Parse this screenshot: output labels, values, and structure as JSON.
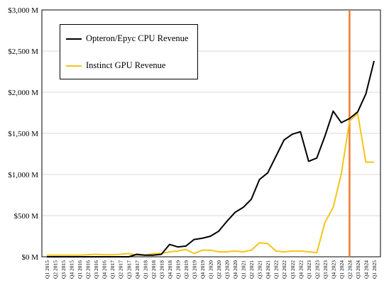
{
  "chart_data": {
    "type": "line",
    "categories": [
      "Q1 2015",
      "Q2 2015",
      "Q3 2015",
      "Q4 2015",
      "Q1 2016",
      "Q2 2016",
      "Q3 2016",
      "Q4 2016",
      "Q1 2017",
      "Q2 2017",
      "Q3 2017",
      "Q4 2017",
      "Q1 2018",
      "Q2 2018",
      "Q3 2018",
      "Q4 2018",
      "Q1 2019",
      "Q2 2019",
      "Q3 2019",
      "Q4 2019",
      "Q1 2020",
      "Q2 2020",
      "Q3 2020",
      "Q4 2020",
      "Q1 2021",
      "Q2 2021",
      "Q3 2021",
      "Q4 2021",
      "Q1 2022",
      "Q2 2022",
      "Q3 2022",
      "Q4 2022",
      "Q1 2023",
      "Q2 2023",
      "Q3 2023",
      "Q4 2023",
      "Q1 2024",
      "Q2 2024",
      "Q3 2024",
      "Q4 2024",
      "Q1 2025"
    ],
    "series": [
      {
        "name": "Opteron/Epyc CPU Revenue",
        "color": "#000000",
        "values": [
          0,
          0,
          0,
          0,
          0,
          0,
          0,
          0,
          0,
          0,
          0,
          30,
          20,
          20,
          30,
          150,
          120,
          130,
          210,
          225,
          250,
          310,
          430,
          540,
          600,
          700,
          940,
          1020,
          1220,
          1420,
          1490,
          1520,
          1160,
          1200,
          1470,
          1770,
          1630,
          1680,
          1760,
          1980,
          2380
        ]
      },
      {
        "name": "Instinct GPU Revenue",
        "color": "#f5c518",
        "values": [
          20,
          20,
          20,
          20,
          20,
          25,
          30,
          25,
          25,
          30,
          40,
          20,
          20,
          40,
          40,
          60,
          70,
          90,
          40,
          80,
          80,
          60,
          60,
          70,
          60,
          80,
          170,
          160,
          70,
          60,
          70,
          70,
          60,
          50,
          420,
          600,
          1010,
          1650,
          1740,
          1150,
          1150
        ]
      }
    ],
    "ylim": [
      0,
      3000
    ],
    "yticks": [
      0,
      500,
      1000,
      1500,
      2000,
      2500,
      3000
    ],
    "ytick_labels": [
      "$0 M",
      "$500 M",
      "$1,000 M",
      "$1,500 M",
      "$2,000 M",
      "$2,500 M",
      "$3,000 M"
    ],
    "vline": {
      "category_index": 37,
      "color": "#f07c32"
    },
    "legend_position": "top-left",
    "grid": "horizontal",
    "title": "",
    "xlabel": "",
    "ylabel": ""
  }
}
